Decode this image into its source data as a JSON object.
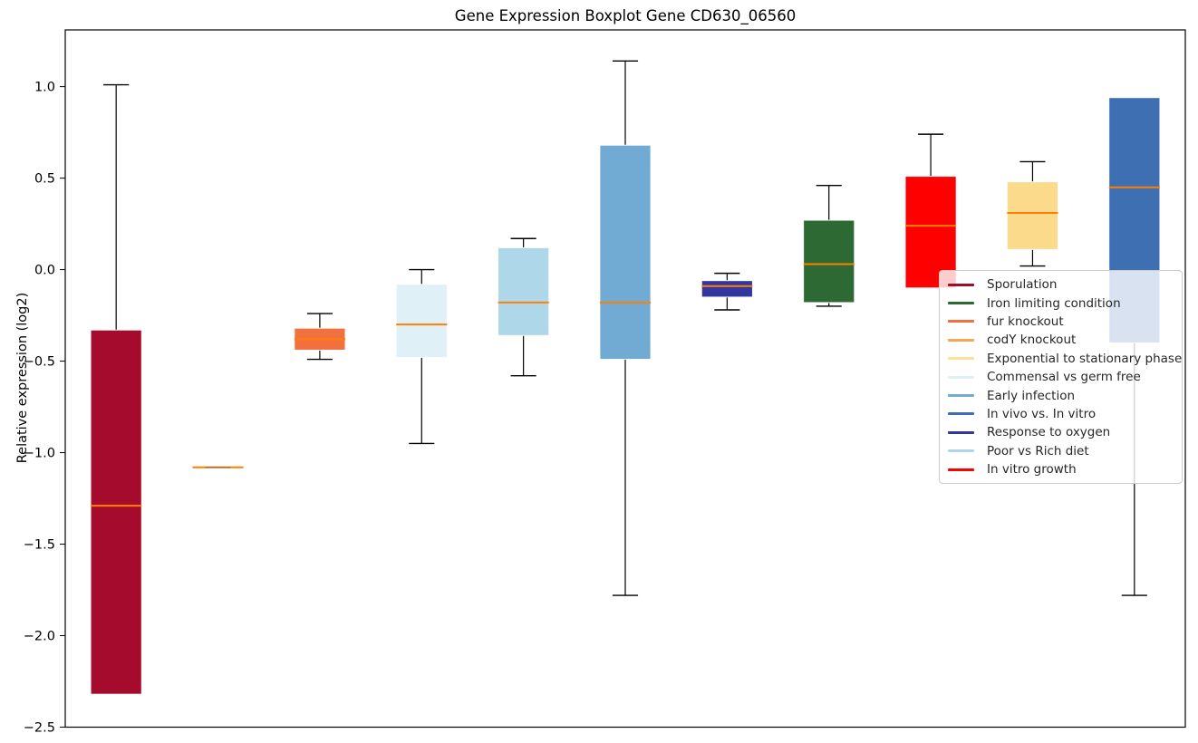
{
  "chart_data": {
    "type": "boxplot",
    "title": "Gene Expression Boxplot Gene CD630_06560",
    "xlabel": "",
    "ylabel": "Relative expression (log2)",
    "ylim": [
      -2.5,
      1.31
    ],
    "xlim": [
      0.5,
      11.5
    ],
    "grid": false,
    "yticks": [
      1.0,
      0.5,
      0.0,
      -0.5,
      -1.0,
      -1.5,
      -2.0,
      -2.5
    ],
    "ytick_labels": [
      "1.0",
      "0.5",
      "0.0",
      "−0.5",
      "−1.0",
      "−1.5",
      "−2.0",
      "−2.5"
    ],
    "median_color": "#ff8000",
    "whisker_color": "#000000",
    "box_width_units": 0.5,
    "series": [
      {
        "name": "Sporulation",
        "color": "#a50b2c",
        "position": 1,
        "whislo": -2.32,
        "q1": -2.32,
        "med": -1.29,
        "q3": -0.33,
        "whishi": 1.01,
        "caps": [
          "high"
        ]
      },
      {
        "name": "codY knockout",
        "color": "#f6a654",
        "position": 2,
        "whislo": -1.08,
        "q1": -1.085,
        "med": -1.08,
        "q3": -1.075,
        "whishi": -1.08,
        "caps": [
          "high",
          "low"
        ]
      },
      {
        "name": "fur knockout",
        "color": "#f27040",
        "position": 3,
        "whislo": -0.49,
        "q1": -0.44,
        "med": -0.38,
        "q3": -0.32,
        "whishi": -0.24,
        "caps": [
          "high",
          "low"
        ]
      },
      {
        "name": "Commensal vs germ free",
        "color": "#dff1f6",
        "position": 4,
        "whislo": -0.95,
        "q1": -0.48,
        "med": -0.3,
        "q3": -0.08,
        "whishi": 0.0,
        "caps": [
          "high",
          "low"
        ]
      },
      {
        "name": "Poor vs Rich diet",
        "color": "#aed7ea",
        "position": 5,
        "whislo": -0.58,
        "q1": -0.36,
        "med": -0.18,
        "q3": 0.12,
        "whishi": 0.17,
        "caps": [
          "high",
          "low"
        ]
      },
      {
        "name": "Early infection",
        "color": "#71abd3",
        "position": 6,
        "whislo": -1.78,
        "q1": -0.49,
        "med": -0.18,
        "q3": 0.68,
        "whishi": 1.14,
        "caps": [
          "high",
          "low"
        ]
      },
      {
        "name": "Response to oxygen",
        "color": "#31379e",
        "position": 7,
        "whislo": -0.22,
        "q1": -0.15,
        "med": -0.09,
        "q3": -0.06,
        "whishi": -0.02,
        "caps": [
          "high",
          "low"
        ]
      },
      {
        "name": "Iron limiting condition",
        "color": "#2d6a33",
        "position": 8,
        "whislo": -0.2,
        "q1": -0.18,
        "med": 0.03,
        "q3": 0.27,
        "whishi": 0.46,
        "caps": [
          "high",
          "low"
        ]
      },
      {
        "name": "In vitro growth",
        "color": "#ff0000",
        "position": 9,
        "whislo": -0.1,
        "q1": -0.1,
        "med": 0.24,
        "q3": 0.51,
        "whishi": 0.74,
        "caps": [
          "high"
        ]
      },
      {
        "name": "Exponential to stationary phase",
        "color": "#fcda8c",
        "position": 10,
        "whislo": 0.02,
        "q1": 0.11,
        "med": 0.31,
        "q3": 0.48,
        "whishi": 0.59,
        "caps": [
          "high",
          "low"
        ]
      },
      {
        "name": "In vivo vs. In vitro",
        "color": "#3d6fb2",
        "position": 11,
        "whislo": -1.78,
        "q1": -0.4,
        "med": 0.45,
        "q3": 0.94,
        "whishi": 0.94,
        "caps": [
          "low"
        ]
      }
    ],
    "legend": {
      "position": "center-right",
      "entries": [
        {
          "label": "Sporulation",
          "color": "#a00d2c"
        },
        {
          "label": "Iron limiting condition",
          "color": "#2d6a33"
        },
        {
          "label": "fur knockout",
          "color": "#f27040"
        },
        {
          "label": "codY knockout",
          "color": "#f6a654"
        },
        {
          "label": "Exponential to stationary phase",
          "color": "#fbdf9a"
        },
        {
          "label": "Commensal vs germ free",
          "color": "#dff1f6"
        },
        {
          "label": "Early infection",
          "color": "#6fabd2"
        },
        {
          "label": "In vivo vs. In vitro",
          "color": "#3d6fb2"
        },
        {
          "label": "Response to oxygen",
          "color": "#31379e"
        },
        {
          "label": "Poor vs Rich diet",
          "color": "#aed7ea"
        },
        {
          "label": "In vitro growth",
          "color": "#ff0000"
        }
      ]
    }
  }
}
